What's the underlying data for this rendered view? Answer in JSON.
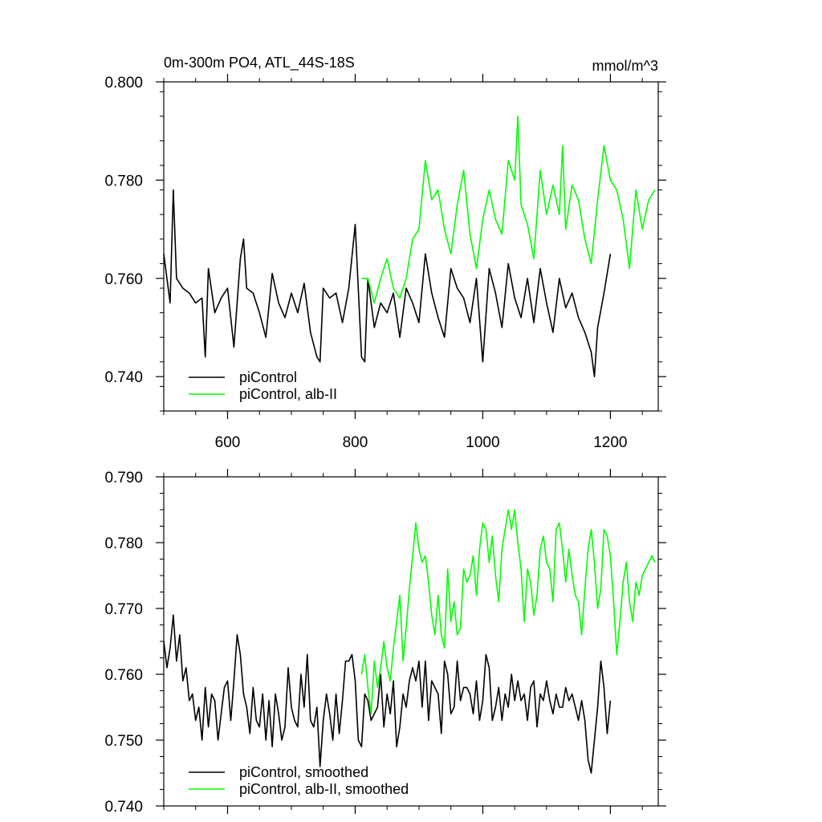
{
  "chart_data": [
    {
      "type": "line",
      "title": "0m-300m PO4, ATL_44S-18S",
      "units": "mmol/m^3",
      "xlim": [
        500,
        1275
      ],
      "ylim": [
        0.733,
        0.8
      ],
      "x_ticks": [
        600,
        800,
        1000,
        1200
      ],
      "x_tick_labels": [
        "600",
        "800",
        "1000",
        "1200"
      ],
      "y_ticks": [
        0.74,
        0.76,
        0.78,
        0.8
      ],
      "y_tick_labels": [
        "0.740",
        "0.760",
        "0.780",
        "0.800"
      ],
      "legend": {
        "position": "bottom-left"
      },
      "series": [
        {
          "name": "piControl",
          "color": "#000000",
          "x": [
            500,
            510,
            515,
            520,
            530,
            540,
            550,
            560,
            565,
            570,
            580,
            590,
            600,
            610,
            620,
            625,
            630,
            640,
            650,
            660,
            670,
            680,
            690,
            700,
            710,
            720,
            730,
            740,
            745,
            750,
            760,
            770,
            780,
            790,
            800,
            810,
            815,
            820,
            830,
            840,
            850,
            860,
            870,
            880,
            890,
            900,
            910,
            920,
            930,
            940,
            950,
            960,
            970,
            980,
            990,
            1000,
            1010,
            1020,
            1030,
            1040,
            1050,
            1060,
            1070,
            1080,
            1090,
            1100,
            1110,
            1120,
            1130,
            1140,
            1150,
            1160,
            1170,
            1175,
            1180,
            1190,
            1200
          ],
          "y": [
            0.765,
            0.755,
            0.778,
            0.76,
            0.758,
            0.757,
            0.755,
            0.756,
            0.744,
            0.762,
            0.753,
            0.756,
            0.758,
            0.746,
            0.764,
            0.768,
            0.758,
            0.757,
            0.753,
            0.748,
            0.761,
            0.755,
            0.752,
            0.757,
            0.753,
            0.759,
            0.749,
            0.744,
            0.743,
            0.758,
            0.756,
            0.757,
            0.751,
            0.758,
            0.771,
            0.744,
            0.743,
            0.76,
            0.75,
            0.755,
            0.753,
            0.757,
            0.748,
            0.758,
            0.755,
            0.751,
            0.765,
            0.757,
            0.752,
            0.748,
            0.762,
            0.758,
            0.756,
            0.751,
            0.76,
            0.743,
            0.762,
            0.757,
            0.75,
            0.763,
            0.756,
            0.752,
            0.76,
            0.751,
            0.762,
            0.755,
            0.749,
            0.76,
            0.754,
            0.757,
            0.752,
            0.749,
            0.745,
            0.74,
            0.75,
            0.757,
            0.765
          ]
        },
        {
          "name": "piControl, alb-II",
          "color": "#00ff00",
          "x": [
            810,
            820,
            830,
            840,
            850,
            860,
            870,
            880,
            890,
            900,
            910,
            920,
            930,
            940,
            950,
            960,
            970,
            980,
            990,
            1000,
            1010,
            1020,
            1030,
            1040,
            1050,
            1055,
            1060,
            1070,
            1080,
            1090,
            1100,
            1110,
            1120,
            1125,
            1130,
            1140,
            1150,
            1160,
            1170,
            1180,
            1190,
            1200,
            1210,
            1220,
            1230,
            1240,
            1250,
            1260,
            1270
          ],
          "y": [
            0.76,
            0.76,
            0.755,
            0.76,
            0.764,
            0.758,
            0.756,
            0.76,
            0.768,
            0.77,
            0.784,
            0.776,
            0.778,
            0.77,
            0.765,
            0.775,
            0.782,
            0.769,
            0.762,
            0.772,
            0.778,
            0.772,
            0.769,
            0.784,
            0.78,
            0.793,
            0.775,
            0.771,
            0.764,
            0.782,
            0.773,
            0.779,
            0.773,
            0.787,
            0.77,
            0.779,
            0.776,
            0.768,
            0.763,
            0.776,
            0.787,
            0.78,
            0.778,
            0.772,
            0.762,
            0.778,
            0.77,
            0.776,
            0.778
          ]
        }
      ]
    },
    {
      "type": "line",
      "xlim": [
        500,
        1275
      ],
      "ylim": [
        0.74,
        0.79
      ],
      "x_ticks": [
        600,
        800,
        1000,
        1200
      ],
      "y_ticks": [
        0.74,
        0.75,
        0.76,
        0.77,
        0.78,
        0.79
      ],
      "y_tick_labels": [
        "0.740",
        "0.750",
        "0.760",
        "0.770",
        "0.780",
        "0.790"
      ],
      "legend": {
        "position": "bottom-left"
      },
      "series": [
        {
          "name": "piControl, smoothed",
          "color": "#000000",
          "x": [
            500,
            505,
            510,
            515,
            520,
            525,
            530,
            535,
            540,
            545,
            550,
            555,
            560,
            565,
            570,
            575,
            580,
            585,
            590,
            595,
            600,
            605,
            610,
            615,
            620,
            625,
            630,
            635,
            640,
            645,
            650,
            655,
            660,
            665,
            670,
            675,
            680,
            685,
            690,
            695,
            700,
            705,
            710,
            715,
            720,
            725,
            730,
            735,
            740,
            745,
            750,
            755,
            760,
            765,
            770,
            775,
            780,
            785,
            790,
            795,
            800,
            805,
            810,
            815,
            820,
            825,
            830,
            835,
            840,
            845,
            850,
            855,
            860,
            865,
            870,
            875,
            880,
            885,
            890,
            895,
            900,
            905,
            910,
            915,
            920,
            925,
            930,
            935,
            940,
            945,
            950,
            955,
            960,
            965,
            970,
            975,
            980,
            985,
            990,
            995,
            1000,
            1005,
            1010,
            1015,
            1020,
            1025,
            1030,
            1035,
            1040,
            1045,
            1050,
            1055,
            1060,
            1065,
            1070,
            1075,
            1080,
            1085,
            1090,
            1095,
            1100,
            1105,
            1110,
            1115,
            1120,
            1125,
            1130,
            1135,
            1140,
            1145,
            1150,
            1155,
            1160,
            1165,
            1170,
            1175,
            1180,
            1185,
            1190,
            1195,
            1200
          ],
          "y": [
            0.765,
            0.761,
            0.764,
            0.769,
            0.762,
            0.766,
            0.759,
            0.761,
            0.756,
            0.757,
            0.753,
            0.755,
            0.75,
            0.758,
            0.752,
            0.757,
            0.756,
            0.75,
            0.754,
            0.758,
            0.759,
            0.753,
            0.759,
            0.766,
            0.763,
            0.757,
            0.755,
            0.751,
            0.758,
            0.753,
            0.752,
            0.757,
            0.75,
            0.756,
            0.749,
            0.757,
            0.754,
            0.75,
            0.752,
            0.761,
            0.755,
            0.753,
            0.752,
            0.76,
            0.755,
            0.763,
            0.753,
            0.752,
            0.755,
            0.746,
            0.753,
            0.757,
            0.754,
            0.75,
            0.757,
            0.751,
            0.756,
            0.762,
            0.762,
            0.763,
            0.759,
            0.75,
            0.749,
            0.757,
            0.756,
            0.753,
            0.754,
            0.755,
            0.76,
            0.752,
            0.757,
            0.754,
            0.759,
            0.749,
            0.752,
            0.757,
            0.755,
            0.759,
            0.761,
            0.759,
            0.762,
            0.755,
            0.762,
            0.753,
            0.759,
            0.758,
            0.757,
            0.751,
            0.762,
            0.76,
            0.754,
            0.755,
            0.762,
            0.756,
            0.758,
            0.758,
            0.757,
            0.754,
            0.759,
            0.753,
            0.756,
            0.763,
            0.761,
            0.753,
            0.755,
            0.758,
            0.753,
            0.757,
            0.755,
            0.76,
            0.756,
            0.759,
            0.756,
            0.757,
            0.753,
            0.758,
            0.759,
            0.752,
            0.757,
            0.756,
            0.759,
            0.756,
            0.754,
            0.757,
            0.755,
            0.755,
            0.758,
            0.756,
            0.757,
            0.755,
            0.753,
            0.756,
            0.753,
            0.747,
            0.745,
            0.75,
            0.755,
            0.762,
            0.758,
            0.751,
            0.756
          ]
        },
        {
          "name": "piControl, alb-II, smoothed",
          "color": "#00ff00",
          "x": [
            810,
            815,
            820,
            825,
            830,
            835,
            840,
            845,
            850,
            855,
            860,
            865,
            870,
            875,
            880,
            885,
            890,
            895,
            900,
            905,
            910,
            915,
            920,
            925,
            930,
            935,
            940,
            945,
            950,
            955,
            960,
            965,
            970,
            975,
            980,
            985,
            990,
            995,
            1000,
            1005,
            1010,
            1015,
            1020,
            1025,
            1030,
            1035,
            1040,
            1045,
            1050,
            1055,
            1060,
            1065,
            1070,
            1075,
            1080,
            1085,
            1090,
            1095,
            1100,
            1105,
            1110,
            1115,
            1120,
            1125,
            1130,
            1135,
            1140,
            1145,
            1150,
            1155,
            1160,
            1165,
            1170,
            1175,
            1180,
            1185,
            1190,
            1195,
            1200,
            1205,
            1210,
            1215,
            1220,
            1225,
            1230,
            1235,
            1240,
            1245,
            1250,
            1255,
            1260,
            1265,
            1270
          ],
          "y": [
            0.76,
            0.763,
            0.758,
            0.754,
            0.762,
            0.758,
            0.761,
            0.765,
            0.761,
            0.759,
            0.764,
            0.768,
            0.772,
            0.762,
            0.767,
            0.773,
            0.778,
            0.783,
            0.779,
            0.777,
            0.778,
            0.774,
            0.769,
            0.766,
            0.772,
            0.766,
            0.764,
            0.776,
            0.768,
            0.771,
            0.766,
            0.767,
            0.776,
            0.774,
            0.775,
            0.778,
            0.772,
            0.779,
            0.783,
            0.782,
            0.777,
            0.781,
            0.775,
            0.771,
            0.779,
            0.782,
            0.785,
            0.782,
            0.785,
            0.78,
            0.776,
            0.768,
            0.776,
            0.774,
            0.769,
            0.772,
            0.779,
            0.781,
            0.777,
            0.776,
            0.771,
            0.782,
            0.783,
            0.779,
            0.774,
            0.779,
            0.775,
            0.772,
            0.771,
            0.766,
            0.773,
            0.779,
            0.782,
            0.777,
            0.77,
            0.773,
            0.782,
            0.781,
            0.778,
            0.771,
            0.763,
            0.768,
            0.774,
            0.777,
            0.771,
            0.768,
            0.774,
            0.772,
            0.775,
            0.776,
            0.777,
            0.778,
            0.777
          ]
        }
      ]
    }
  ]
}
